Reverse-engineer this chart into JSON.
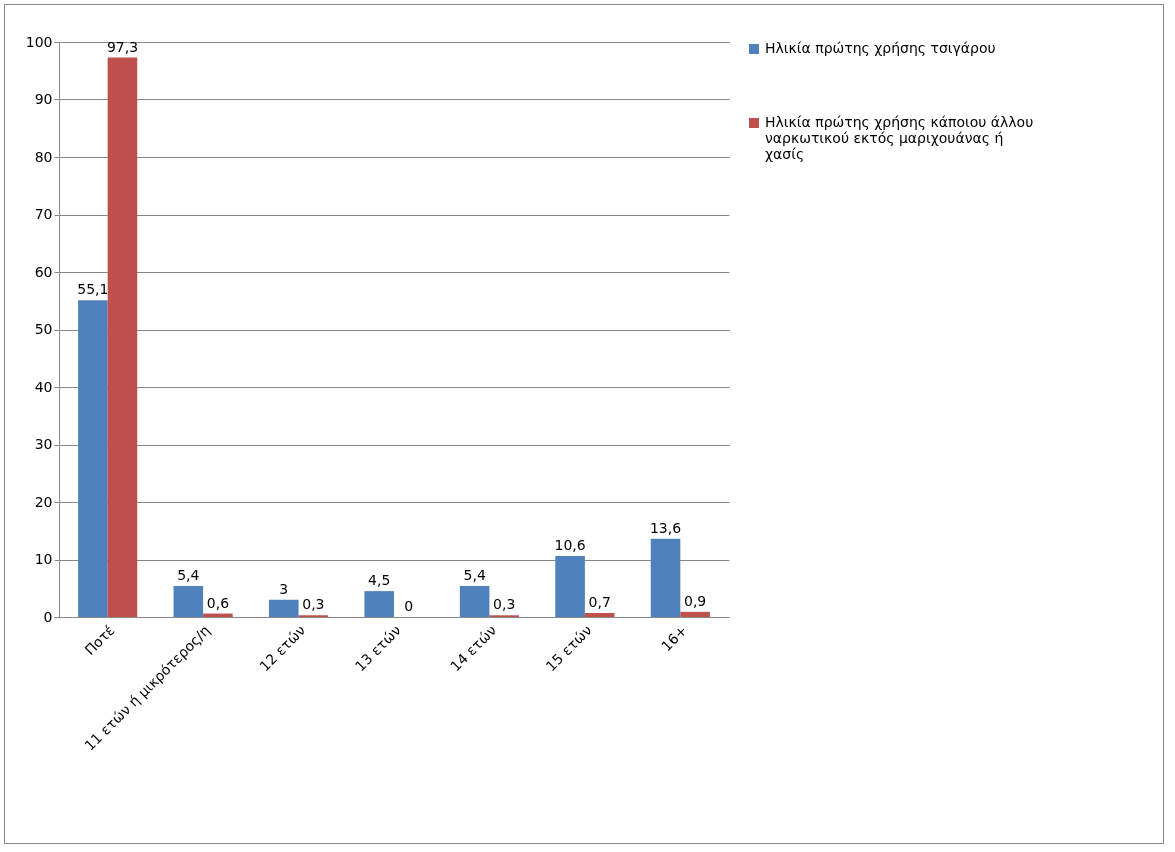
{
  "chart_data": {
    "type": "bar",
    "categories": [
      "Ποτέ",
      "11 ετών ή μικρότερος/η",
      "12 ετών",
      "13 ετών",
      "14 ετών",
      "15 ετών",
      "16+"
    ],
    "series": [
      {
        "name": "Ηλικία πρώτης χρήσης τσιγάρου",
        "color": "#4f81bd",
        "values": [
          55.1,
          5.4,
          3,
          4.5,
          5.4,
          10.6,
          13.6
        ],
        "value_labels": [
          "55,1",
          "5,4",
          "3",
          "4,5",
          "5,4",
          "10,6",
          "13,6"
        ]
      },
      {
        "name": "Ηλικία πρώτης χρήσης κάποιου άλλου ναρκωτικού εκτός μαριχουάνας ή χασίς",
        "color": "#c0504d",
        "values": [
          97.3,
          0.6,
          0.3,
          0,
          0.3,
          0.7,
          0.9
        ],
        "value_labels": [
          "97,3",
          "0,6",
          "0,3",
          "0",
          "0,3",
          "0,7",
          "0,9"
        ]
      }
    ],
    "ylim": [
      0,
      100
    ],
    "yticks": [
      0,
      10,
      20,
      30,
      40,
      50,
      60,
      70,
      80,
      90,
      100
    ],
    "grid": "y",
    "legend": "right"
  }
}
